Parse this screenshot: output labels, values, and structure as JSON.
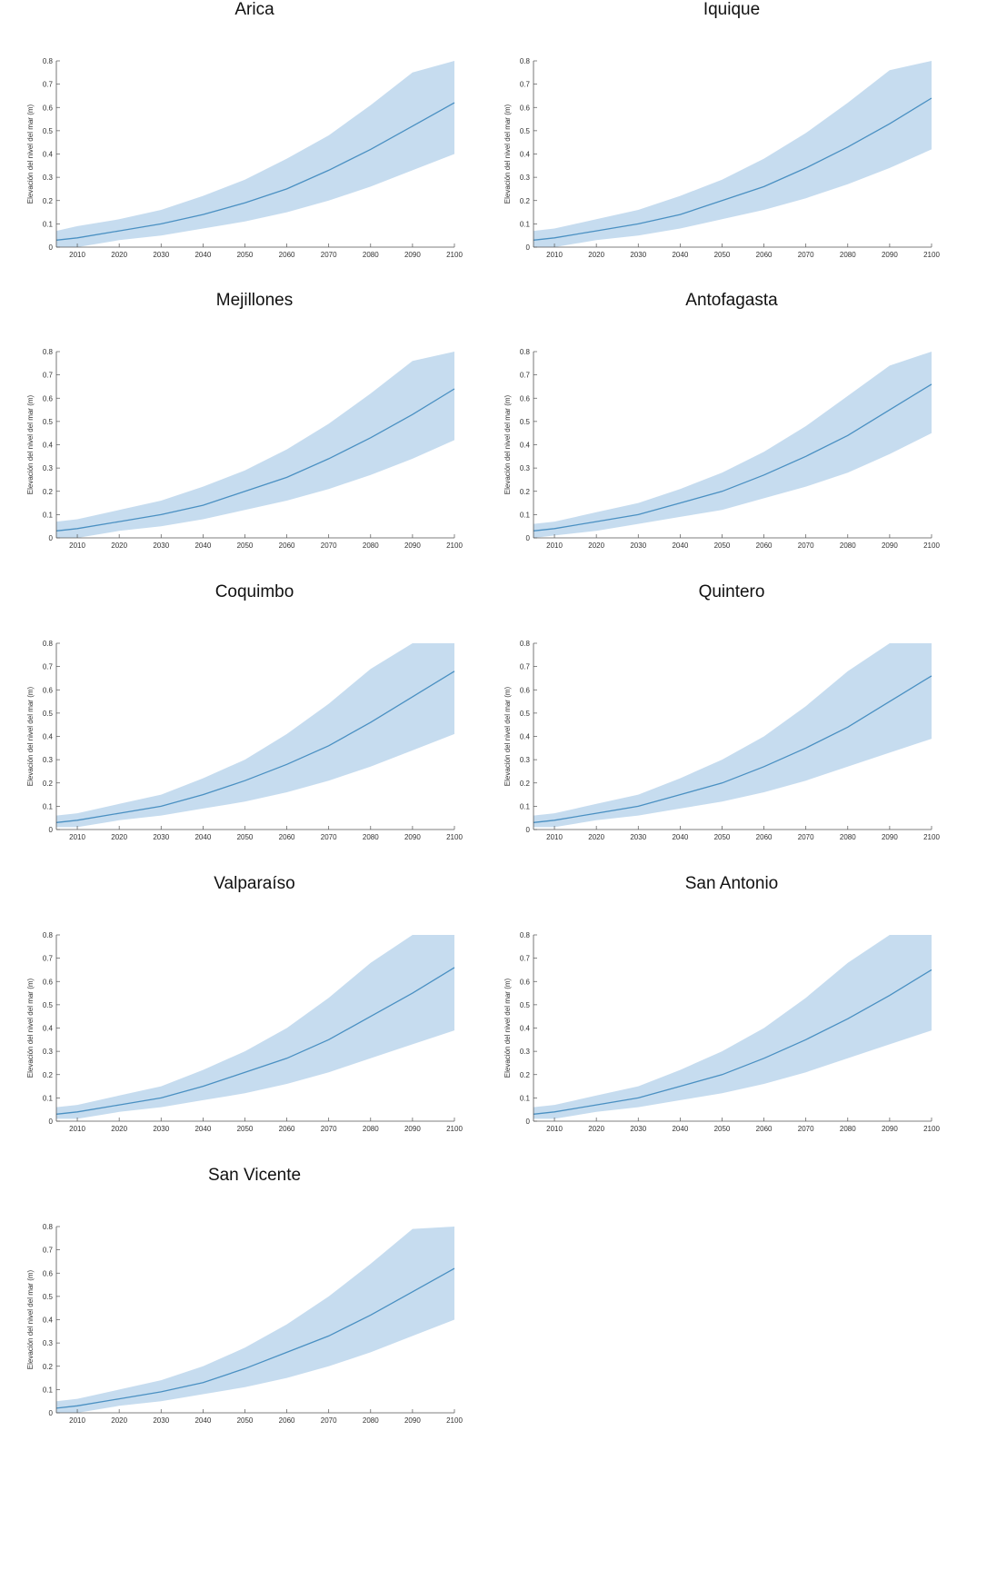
{
  "figure": {
    "y_axis_label": "Elevación del nivel del mar (m)",
    "colors": {
      "line": "#4a90c2",
      "band": "#c6dcef",
      "axis": "#555555"
    }
  },
  "chart_data": [
    {
      "type": "area",
      "title": "Arica",
      "ylabel": "Elevación del nivel del mar (m)",
      "x": [
        2005,
        2010,
        2020,
        2030,
        2040,
        2050,
        2060,
        2070,
        2080,
        2090,
        2100
      ],
      "xticks": [
        2010,
        2020,
        2030,
        2040,
        2050,
        2060,
        2070,
        2080,
        2090,
        2100
      ],
      "yticks": [
        0,
        0.1,
        0.2,
        0.3,
        0.4,
        0.5,
        0.6,
        0.7,
        0.8
      ],
      "xlim": [
        2005,
        2100
      ],
      "ylim": [
        0,
        0.8
      ],
      "grid": false,
      "series": [
        {
          "role": "mean",
          "values": [
            0.03,
            0.04,
            0.07,
            0.1,
            0.14,
            0.19,
            0.25,
            0.33,
            0.42,
            0.52,
            0.62
          ]
        },
        {
          "role": "lower",
          "values": [
            0.0,
            0.0,
            0.03,
            0.05,
            0.08,
            0.11,
            0.15,
            0.2,
            0.26,
            0.33,
            0.4
          ]
        },
        {
          "role": "upper",
          "values": [
            0.07,
            0.09,
            0.12,
            0.16,
            0.22,
            0.29,
            0.38,
            0.48,
            0.61,
            0.75,
            0.8
          ]
        }
      ]
    },
    {
      "type": "area",
      "title": "Iquique",
      "ylabel": "Elevación del nivel del mar (m)",
      "x": [
        2005,
        2010,
        2020,
        2030,
        2040,
        2050,
        2060,
        2070,
        2080,
        2090,
        2100
      ],
      "xticks": [
        2010,
        2020,
        2030,
        2040,
        2050,
        2060,
        2070,
        2080,
        2090,
        2100
      ],
      "yticks": [
        0,
        0.1,
        0.2,
        0.3,
        0.4,
        0.5,
        0.6,
        0.7,
        0.8
      ],
      "xlim": [
        2005,
        2100
      ],
      "ylim": [
        0,
        0.8
      ],
      "grid": false,
      "series": [
        {
          "role": "mean",
          "values": [
            0.03,
            0.04,
            0.07,
            0.1,
            0.14,
            0.2,
            0.26,
            0.34,
            0.43,
            0.53,
            0.64
          ]
        },
        {
          "role": "lower",
          "values": [
            0.0,
            0.0,
            0.03,
            0.05,
            0.08,
            0.12,
            0.16,
            0.21,
            0.27,
            0.34,
            0.42
          ]
        },
        {
          "role": "upper",
          "values": [
            0.07,
            0.08,
            0.12,
            0.16,
            0.22,
            0.29,
            0.38,
            0.49,
            0.62,
            0.76,
            0.8
          ]
        }
      ]
    },
    {
      "type": "area",
      "title": "Mejillones",
      "ylabel": "Elevación del nivel del mar (m)",
      "x": [
        2005,
        2010,
        2020,
        2030,
        2040,
        2050,
        2060,
        2070,
        2080,
        2090,
        2100
      ],
      "xticks": [
        2010,
        2020,
        2030,
        2040,
        2050,
        2060,
        2070,
        2080,
        2090,
        2100
      ],
      "yticks": [
        0,
        0.1,
        0.2,
        0.3,
        0.4,
        0.5,
        0.6,
        0.7,
        0.8
      ],
      "xlim": [
        2005,
        2100
      ],
      "ylim": [
        0,
        0.8
      ],
      "grid": false,
      "series": [
        {
          "role": "mean",
          "values": [
            0.03,
            0.04,
            0.07,
            0.1,
            0.14,
            0.2,
            0.26,
            0.34,
            0.43,
            0.53,
            0.64
          ]
        },
        {
          "role": "lower",
          "values": [
            0.0,
            0.0,
            0.03,
            0.05,
            0.08,
            0.12,
            0.16,
            0.21,
            0.27,
            0.34,
            0.42
          ]
        },
        {
          "role": "upper",
          "values": [
            0.07,
            0.08,
            0.12,
            0.16,
            0.22,
            0.29,
            0.38,
            0.49,
            0.62,
            0.76,
            0.8
          ]
        }
      ]
    },
    {
      "type": "area",
      "title": "Antofagasta",
      "ylabel": "Elevación del nivel del mar (m)",
      "x": [
        2005,
        2010,
        2020,
        2030,
        2040,
        2050,
        2060,
        2070,
        2080,
        2090,
        2100
      ],
      "xticks": [
        2010,
        2020,
        2030,
        2040,
        2050,
        2060,
        2070,
        2080,
        2090,
        2100
      ],
      "yticks": [
        0,
        0.1,
        0.2,
        0.3,
        0.4,
        0.5,
        0.6,
        0.7,
        0.8
      ],
      "xlim": [
        2005,
        2100
      ],
      "ylim": [
        0,
        0.8
      ],
      "grid": false,
      "series": [
        {
          "role": "mean",
          "values": [
            0.03,
            0.04,
            0.07,
            0.1,
            0.15,
            0.2,
            0.27,
            0.35,
            0.44,
            0.55,
            0.66
          ]
        },
        {
          "role": "lower",
          "values": [
            0.0,
            0.01,
            0.03,
            0.06,
            0.09,
            0.12,
            0.17,
            0.22,
            0.28,
            0.36,
            0.45
          ]
        },
        {
          "role": "upper",
          "values": [
            0.06,
            0.07,
            0.11,
            0.15,
            0.21,
            0.28,
            0.37,
            0.48,
            0.61,
            0.74,
            0.8
          ]
        }
      ]
    },
    {
      "type": "area",
      "title": "Coquimbo",
      "ylabel": "Elevación del nivel del mar (m)",
      "x": [
        2005,
        2010,
        2020,
        2030,
        2040,
        2050,
        2060,
        2070,
        2080,
        2090,
        2100
      ],
      "xticks": [
        2010,
        2020,
        2030,
        2040,
        2050,
        2060,
        2070,
        2080,
        2090,
        2100
      ],
      "yticks": [
        0,
        0.1,
        0.2,
        0.3,
        0.4,
        0.5,
        0.6,
        0.7,
        0.8
      ],
      "xlim": [
        2005,
        2100
      ],
      "ylim": [
        0,
        0.8
      ],
      "grid": false,
      "series": [
        {
          "role": "mean",
          "values": [
            0.03,
            0.04,
            0.07,
            0.1,
            0.15,
            0.21,
            0.28,
            0.36,
            0.46,
            0.57,
            0.68
          ]
        },
        {
          "role": "lower",
          "values": [
            0.01,
            0.01,
            0.04,
            0.06,
            0.09,
            0.12,
            0.16,
            0.21,
            0.27,
            0.34,
            0.41
          ]
        },
        {
          "role": "upper",
          "values": [
            0.06,
            0.07,
            0.11,
            0.15,
            0.22,
            0.3,
            0.41,
            0.54,
            0.69,
            0.8,
            0.8
          ]
        }
      ]
    },
    {
      "type": "area",
      "title": "Quintero",
      "ylabel": "Elevación del nivel del mar (m)",
      "x": [
        2005,
        2010,
        2020,
        2030,
        2040,
        2050,
        2060,
        2070,
        2080,
        2090,
        2100
      ],
      "xticks": [
        2010,
        2020,
        2030,
        2040,
        2050,
        2060,
        2070,
        2080,
        2090,
        2100
      ],
      "yticks": [
        0,
        0.1,
        0.2,
        0.3,
        0.4,
        0.5,
        0.6,
        0.7,
        0.8
      ],
      "xlim": [
        2005,
        2100
      ],
      "ylim": [
        0,
        0.8
      ],
      "grid": false,
      "series": [
        {
          "role": "mean",
          "values": [
            0.03,
            0.04,
            0.07,
            0.1,
            0.15,
            0.2,
            0.27,
            0.35,
            0.44,
            0.55,
            0.66
          ]
        },
        {
          "role": "lower",
          "values": [
            0.01,
            0.01,
            0.04,
            0.06,
            0.09,
            0.12,
            0.16,
            0.21,
            0.27,
            0.33,
            0.39
          ]
        },
        {
          "role": "upper",
          "values": [
            0.06,
            0.07,
            0.11,
            0.15,
            0.22,
            0.3,
            0.4,
            0.53,
            0.68,
            0.8,
            0.8
          ]
        }
      ]
    },
    {
      "type": "area",
      "title": "Valparaíso",
      "ylabel": "Elevación del nivel del mar (m)",
      "x": [
        2005,
        2010,
        2020,
        2030,
        2040,
        2050,
        2060,
        2070,
        2080,
        2090,
        2100
      ],
      "xticks": [
        2010,
        2020,
        2030,
        2040,
        2050,
        2060,
        2070,
        2080,
        2090,
        2100
      ],
      "yticks": [
        0,
        0.1,
        0.2,
        0.3,
        0.4,
        0.5,
        0.6,
        0.7,
        0.8
      ],
      "xlim": [
        2005,
        2100
      ],
      "ylim": [
        0,
        0.8
      ],
      "grid": false,
      "series": [
        {
          "role": "mean",
          "values": [
            0.03,
            0.04,
            0.07,
            0.1,
            0.15,
            0.21,
            0.27,
            0.35,
            0.45,
            0.55,
            0.66
          ]
        },
        {
          "role": "lower",
          "values": [
            0.01,
            0.01,
            0.04,
            0.06,
            0.09,
            0.12,
            0.16,
            0.21,
            0.27,
            0.33,
            0.39
          ]
        },
        {
          "role": "upper",
          "values": [
            0.06,
            0.07,
            0.11,
            0.15,
            0.22,
            0.3,
            0.4,
            0.53,
            0.68,
            0.8,
            0.8
          ]
        }
      ]
    },
    {
      "type": "area",
      "title": "San Antonio",
      "ylabel": "Elevación del nivel del mar (m)",
      "x": [
        2005,
        2010,
        2020,
        2030,
        2040,
        2050,
        2060,
        2070,
        2080,
        2090,
        2100
      ],
      "xticks": [
        2010,
        2020,
        2030,
        2040,
        2050,
        2060,
        2070,
        2080,
        2090,
        2100
      ],
      "yticks": [
        0,
        0.1,
        0.2,
        0.3,
        0.4,
        0.5,
        0.6,
        0.7,
        0.8
      ],
      "xlim": [
        2005,
        2100
      ],
      "ylim": [
        0,
        0.8
      ],
      "grid": false,
      "series": [
        {
          "role": "mean",
          "values": [
            0.03,
            0.04,
            0.07,
            0.1,
            0.15,
            0.2,
            0.27,
            0.35,
            0.44,
            0.54,
            0.65
          ]
        },
        {
          "role": "lower",
          "values": [
            0.01,
            0.01,
            0.04,
            0.06,
            0.09,
            0.12,
            0.16,
            0.21,
            0.27,
            0.33,
            0.39
          ]
        },
        {
          "role": "upper",
          "values": [
            0.06,
            0.07,
            0.11,
            0.15,
            0.22,
            0.3,
            0.4,
            0.53,
            0.68,
            0.8,
            0.8
          ]
        }
      ]
    },
    {
      "type": "area",
      "title": "San Vicente",
      "ylabel": "Elevación del nivel del mar (m)",
      "x": [
        2005,
        2010,
        2020,
        2030,
        2040,
        2050,
        2060,
        2070,
        2080,
        2090,
        2100
      ],
      "xticks": [
        2010,
        2020,
        2030,
        2040,
        2050,
        2060,
        2070,
        2080,
        2090,
        2100
      ],
      "yticks": [
        0,
        0.1,
        0.2,
        0.3,
        0.4,
        0.5,
        0.6,
        0.7,
        0.8
      ],
      "xlim": [
        2005,
        2100
      ],
      "ylim": [
        0,
        0.8
      ],
      "grid": false,
      "series": [
        {
          "role": "mean",
          "values": [
            0.02,
            0.03,
            0.06,
            0.09,
            0.13,
            0.19,
            0.26,
            0.33,
            0.42,
            0.52,
            0.62
          ]
        },
        {
          "role": "lower",
          "values": [
            0.0,
            0.0,
            0.03,
            0.05,
            0.08,
            0.11,
            0.15,
            0.2,
            0.26,
            0.33,
            0.4
          ]
        },
        {
          "role": "upper",
          "values": [
            0.05,
            0.06,
            0.1,
            0.14,
            0.2,
            0.28,
            0.38,
            0.5,
            0.64,
            0.79,
            0.8
          ]
        }
      ]
    }
  ]
}
